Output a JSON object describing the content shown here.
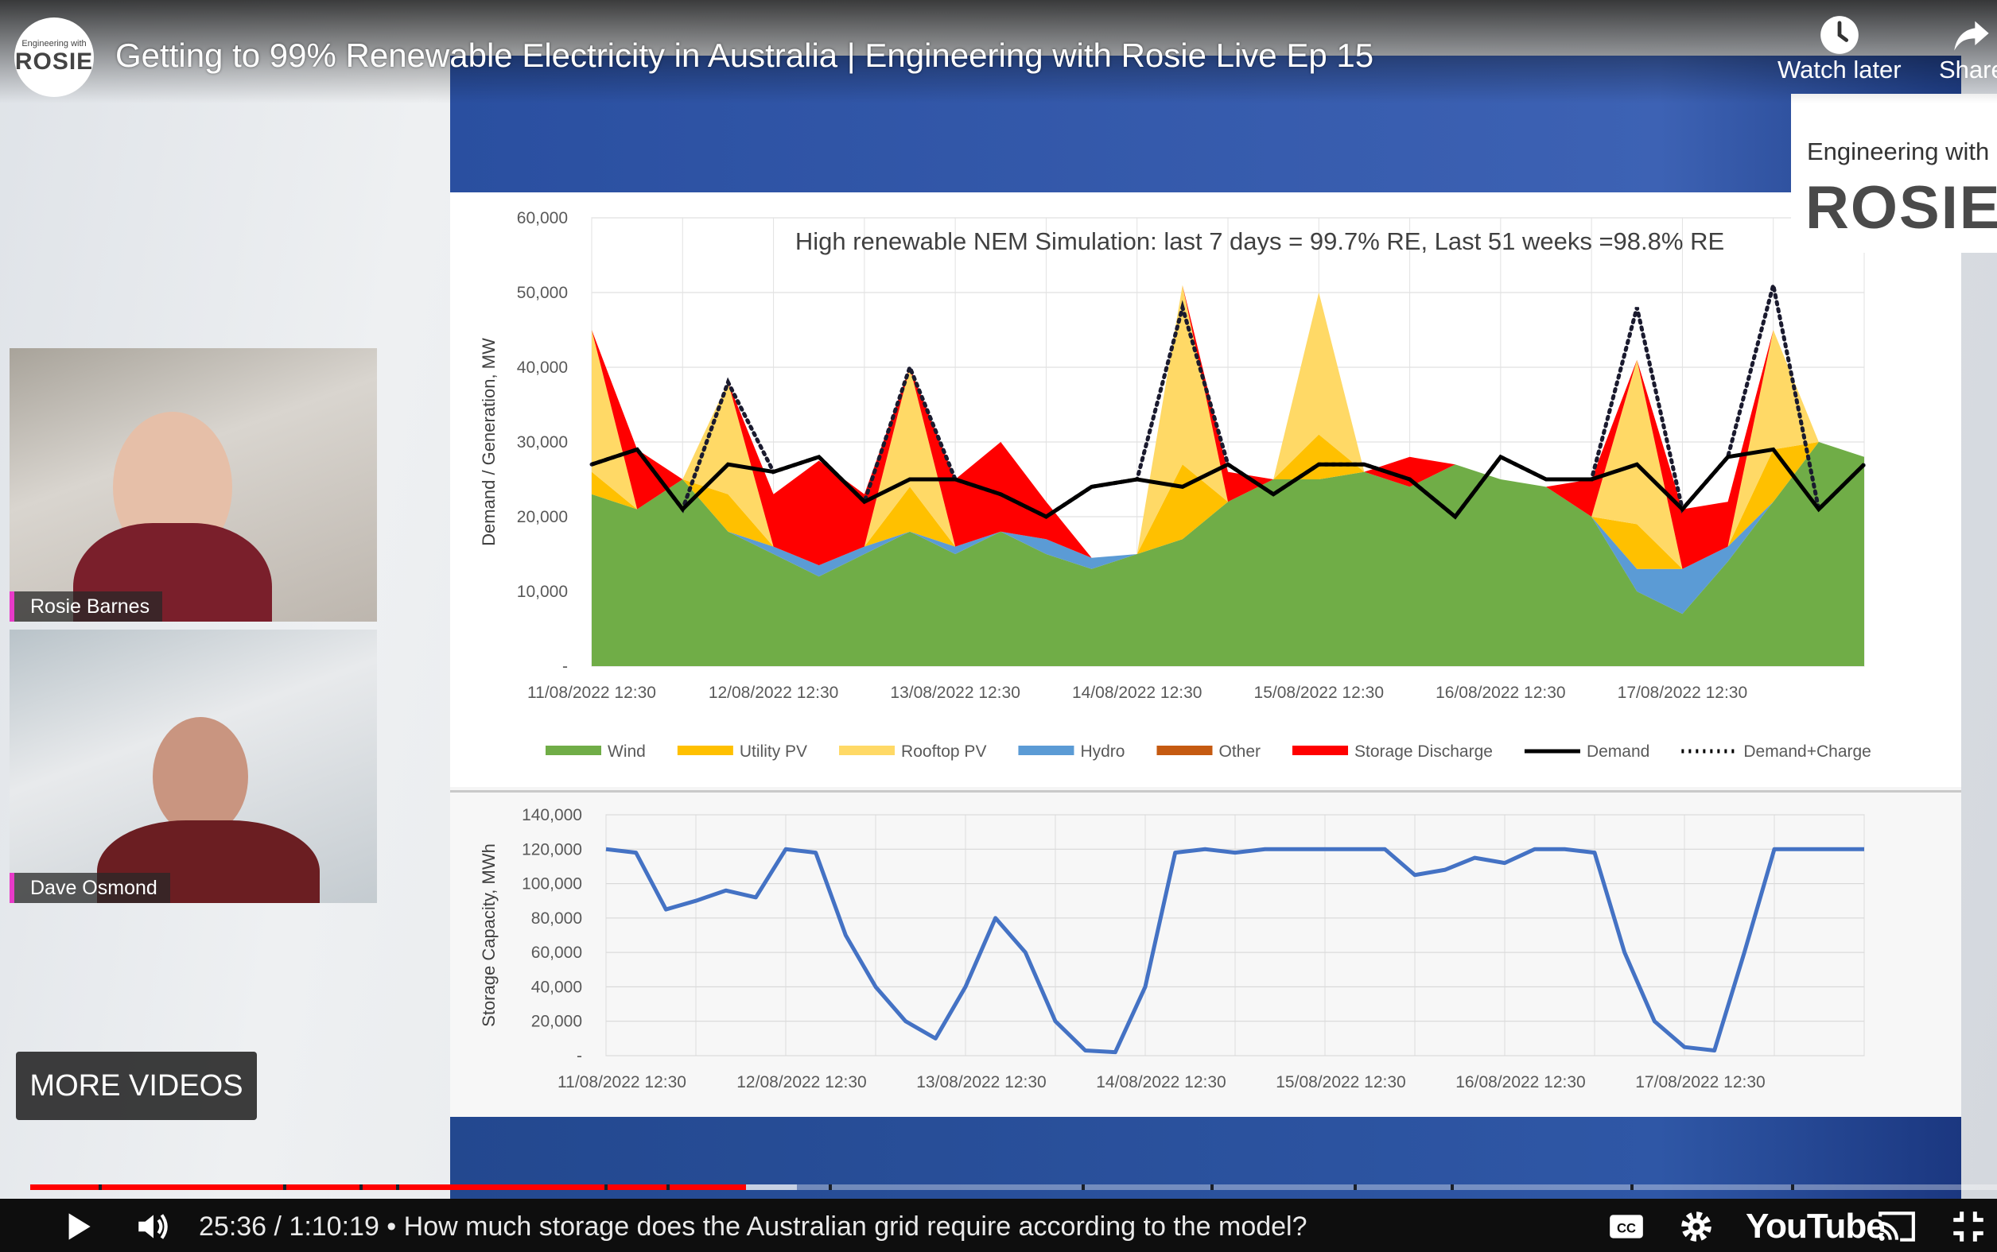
{
  "video": {
    "title": "Getting to 99% Renewable Electricity in Australia | Engineering with Rosie Live Ep 15",
    "channel_logo": {
      "line1": "Engineering with",
      "line2": "ROSIE"
    },
    "actions": [
      {
        "label": "Watch later",
        "icon": "clock-icon"
      },
      {
        "label": "Share",
        "icon": "share-arrow-icon"
      }
    ],
    "watermark": {
      "line1": "Engineering with",
      "line2": "ROSIE"
    },
    "more_videos_label": "MORE VIDEOS"
  },
  "participants": [
    {
      "name": "Rosie Barnes"
    },
    {
      "name": "Dave Osmond"
    }
  ],
  "player": {
    "time_current": "25:36",
    "time_total": "1:10:19",
    "timecode_text": "25:36 / 1:10:19 • How much storage does the Australian grid require according to the model?",
    "chapter": "How much storage does the Australian grid require according to the model?",
    "progress_fraction": 0.364,
    "buffered_fraction": 0.39,
    "brand": "YouTube",
    "icons": [
      "play-icon",
      "volume-icon",
      "captions-icon",
      "settings-gear-icon",
      "cast-icon",
      "exit-fullscreen-icon"
    ]
  },
  "chart_data": [
    {
      "type": "area",
      "title": "High renewable NEM Simulation: last 7 days = 99.7% RE, Last 51 weeks =98.8% RE",
      "ylabel": "Demand / Generation, MW",
      "ylim": [
        0,
        60000
      ],
      "yticks": [
        "60,000",
        "50,000",
        "40,000",
        "30,000",
        "20,000",
        "10,000",
        "-"
      ],
      "xticks": [
        "11/08/2022 12:30",
        "12/08/2022 12:30",
        "13/08/2022 12:30",
        "14/08/2022 12:30",
        "15/08/2022 12:30",
        "16/08/2022 12:30",
        "17/08/2022 12:30"
      ],
      "x_hours": [
        0,
        6,
        12,
        18,
        24,
        30,
        36,
        42,
        48,
        54,
        60,
        66,
        72,
        78,
        84,
        90,
        96,
        102,
        108,
        114,
        120,
        126,
        132,
        138,
        144,
        150,
        156,
        162,
        168
      ],
      "legend": [
        {
          "name": "Wind",
          "color": "#70ad47"
        },
        {
          "name": "Utility PV",
          "color": "#ffc000"
        },
        {
          "name": "Rooftop PV",
          "color": "#ffd966"
        },
        {
          "name": "Hydro",
          "color": "#5b9bd5"
        },
        {
          "name": "Other",
          "color": "#c55a11"
        },
        {
          "name": "Storage Discharge",
          "color": "#ff0000"
        },
        {
          "name": "Demand",
          "color": "#000000",
          "style": "line"
        },
        {
          "name": "Demand+Charge",
          "color": "#000000",
          "style": "dotted"
        }
      ],
      "series": [
        {
          "name": "Wind",
          "values": [
            23000,
            21000,
            25000,
            18000,
            15000,
            12000,
            15000,
            18000,
            15000,
            18000,
            15000,
            13000,
            15000,
            17000,
            22000,
            25000,
            25000,
            26000,
            24000,
            27000,
            25000,
            24000,
            20000,
            10000,
            7000,
            14000,
            22000,
            30000,
            28000
          ]
        },
        {
          "name": "Hydro",
          "values": [
            0,
            0,
            0,
            0,
            1000,
            1500,
            1000,
            0,
            1000,
            0,
            2000,
            1500,
            0,
            0,
            0,
            0,
            0,
            0,
            0,
            0,
            0,
            0,
            0,
            3000,
            6000,
            2000,
            0,
            0,
            0
          ]
        },
        {
          "name": "Utility PV",
          "values": [
            3000,
            0,
            0,
            5000,
            0,
            0,
            0,
            6000,
            0,
            0,
            0,
            0,
            0,
            10000,
            0,
            0,
            6000,
            0,
            0,
            0,
            0,
            0,
            0,
            6000,
            0,
            0,
            7000,
            0,
            0
          ]
        },
        {
          "name": "Rooftop PV",
          "values": [
            19000,
            0,
            0,
            15000,
            0,
            0,
            0,
            16000,
            0,
            0,
            0,
            0,
            0,
            24000,
            0,
            0,
            19000,
            0,
            0,
            0,
            0,
            0,
            0,
            22000,
            0,
            0,
            16000,
            0,
            0
          ]
        },
        {
          "name": "Storage Discharge",
          "values": [
            0,
            8000,
            0,
            0,
            7000,
            14000,
            7000,
            0,
            9000,
            12000,
            5000,
            0,
            0,
            0,
            4000,
            0,
            0,
            0,
            4000,
            0,
            0,
            0,
            5000,
            0,
            8000,
            6000,
            0,
            0,
            0
          ]
        },
        {
          "name": "Demand",
          "values": [
            27000,
            29000,
            21000,
            27000,
            26000,
            28000,
            22000,
            25000,
            25000,
            23000,
            20000,
            24000,
            25000,
            24000,
            27000,
            23000,
            27000,
            27000,
            25000,
            20000,
            28000,
            25000,
            25000,
            27000,
            21000,
            28000,
            29000,
            21000,
            27000
          ]
        },
        {
          "name": "Demand+Charge",
          "values": [
            27000,
            29000,
            21000,
            38000,
            26000,
            28000,
            22000,
            40000,
            25000,
            23000,
            20000,
            24000,
            25000,
            48000,
            27000,
            23000,
            27000,
            27000,
            25000,
            20000,
            28000,
            25000,
            25000,
            48000,
            21000,
            28000,
            51000,
            21000,
            27000
          ]
        }
      ]
    },
    {
      "type": "line",
      "ylabel": "Storage Capacity, MWh",
      "ylim": [
        0,
        140000
      ],
      "yticks": [
        "140,000",
        "120,000",
        "100,000",
        "80,000",
        "60,000",
        "40,000",
        "20,000",
        "-"
      ],
      "xticks": [
        "11/08/2022 12:30",
        "12/08/2022 12:30",
        "13/08/2022 12:30",
        "14/08/2022 12:30",
        "15/08/2022 12:30",
        "16/08/2022 12:30",
        "17/08/2022 12:30"
      ],
      "x_hours": [
        0,
        4,
        8,
        12,
        16,
        20,
        24,
        28,
        32,
        36,
        40,
        44,
        48,
        52,
        56,
        60,
        64,
        68,
        72,
        76,
        80,
        84,
        88,
        92,
        96,
        100,
        104,
        108,
        112,
        116,
        120,
        124,
        128,
        132,
        136,
        140,
        144,
        148,
        152,
        156,
        160,
        164,
        168
      ],
      "series": [
        {
          "name": "Storage",
          "color": "#4472c4",
          "values": [
            120000,
            118000,
            85000,
            90000,
            96000,
            92000,
            120000,
            118000,
            70000,
            40000,
            20000,
            10000,
            40000,
            80000,
            60000,
            20000,
            3000,
            2000,
            40000,
            118000,
            120000,
            118000,
            120000,
            120000,
            120000,
            120000,
            120000,
            105000,
            108000,
            115000,
            112000,
            120000,
            120000,
            118000,
            60000,
            20000,
            5000,
            3000,
            60000,
            120000,
            120000,
            120000,
            120000
          ]
        }
      ]
    }
  ]
}
